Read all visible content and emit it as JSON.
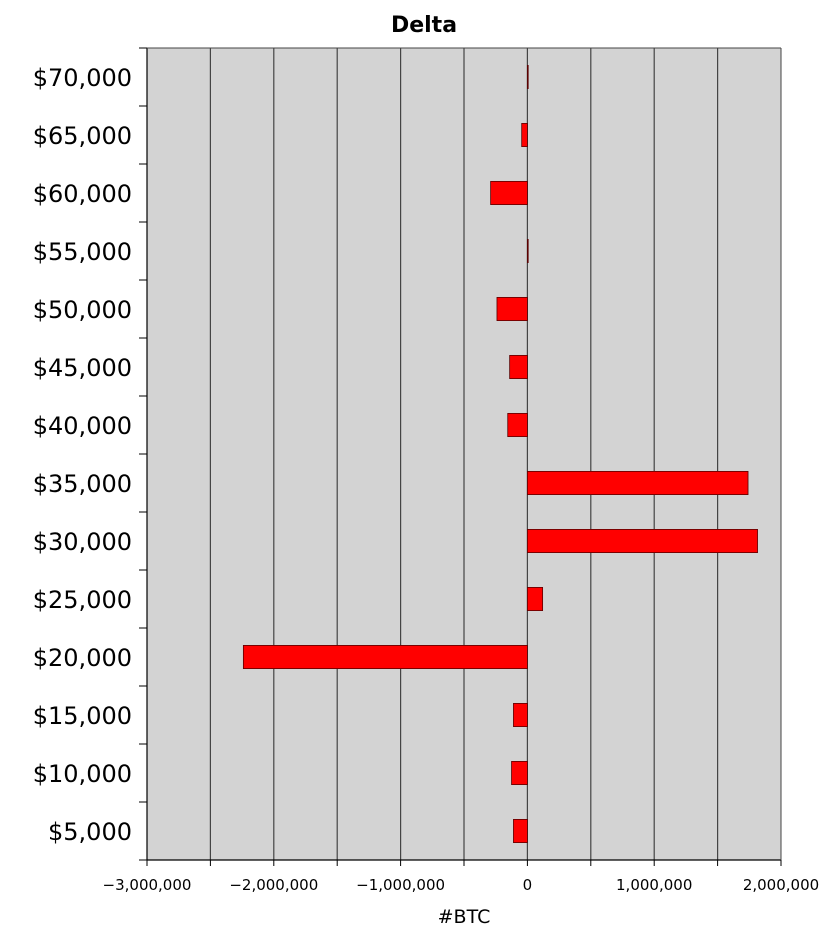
{
  "chart_data": {
    "type": "bar",
    "orientation": "horizontal",
    "title": "Delta",
    "xlabel": "#BTC",
    "ylabel": "",
    "xlim": [
      -3000000,
      2000000
    ],
    "x_ticks": [
      -3000000,
      -2500000,
      -2000000,
      -1500000,
      -1000000,
      -500000,
      0,
      500000,
      1000000,
      1500000,
      2000000
    ],
    "x_tick_labels": [
      "−3,000,000",
      "",
      "−2,000,000",
      "",
      "−1,000,000",
      "",
      "0",
      "",
      "1,000,000",
      "",
      "2,000,000"
    ],
    "grid": "vertical",
    "categories": [
      "$70,000",
      "$65,000",
      "$60,000",
      "$55,000",
      "$50,000",
      "$45,000",
      "$40,000",
      "$35,000",
      "$30,000",
      "$25,000",
      "$20,000",
      "$15,000",
      "$10,000",
      "$5,000"
    ],
    "values": [
      5000,
      -45000,
      -290000,
      0,
      -240000,
      -140000,
      -155000,
      1740000,
      1815000,
      120000,
      -2240000,
      -110000,
      -125000,
      -110000
    ],
    "colors": {
      "bar_fill": "#ff0000",
      "bar_stroke": "#5a0000",
      "plot_background": "#d3d3d3",
      "grid": "#444444",
      "axis": "#000000"
    }
  }
}
